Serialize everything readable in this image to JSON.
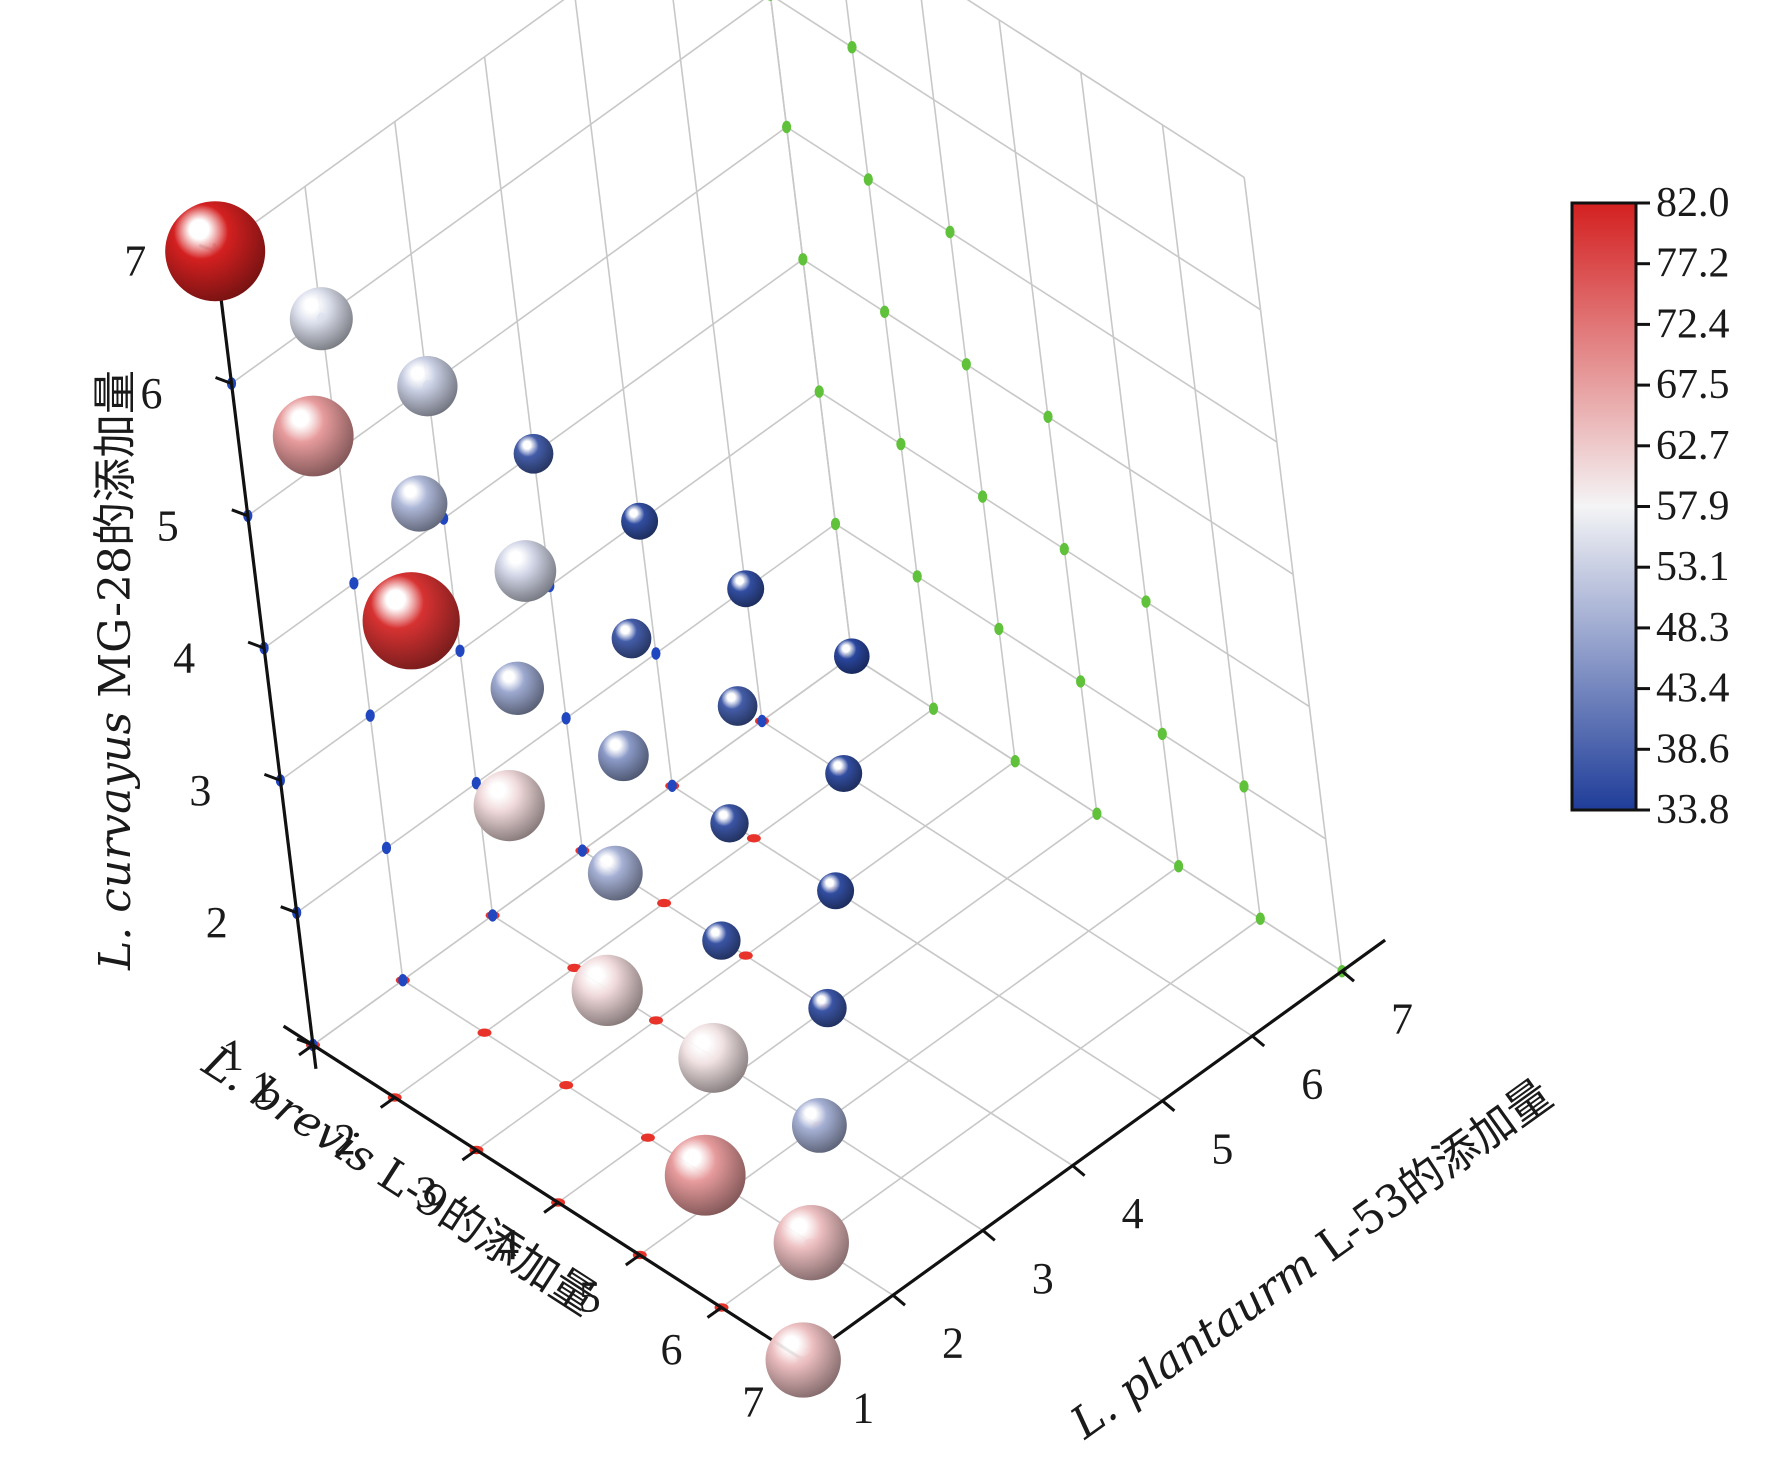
{
  "chart_data": {
    "type": "scatter",
    "chart_kind": "3d-bubble",
    "grid": true,
    "axes": {
      "x": {
        "label_species": "L. brevis",
        "label_rest": " L-9的添加量",
        "ticks": [
          "1",
          "2",
          "3",
          "4",
          "5",
          "6",
          "7"
        ],
        "range": [
          1,
          7
        ]
      },
      "y": {
        "label_species": "L. plantaurm",
        "label_rest": " L-53的添加量",
        "ticks": [
          "1",
          "2",
          "3",
          "4",
          "5",
          "6",
          "7"
        ],
        "range": [
          1,
          7
        ]
      },
      "z": {
        "label_species": "L. curvayus",
        "label_rest": " MG-28的添加量",
        "ticks": [
          "1",
          "2",
          "3",
          "4",
          "5",
          "6",
          "7"
        ],
        "range": [
          1,
          7
        ]
      }
    },
    "colorbar": {
      "position": "right",
      "min": 33.8,
      "max": 82.0,
      "ticks": [
        "82.0",
        "77.2",
        "72.4",
        "67.5",
        "62.7",
        "57.9",
        "53.1",
        "48.3",
        "43.4",
        "38.6",
        "33.8"
      ],
      "colors": {
        "low": "#1f3d99",
        "mid": "#f4f4f6",
        "high": "#d42020"
      }
    },
    "points": [
      {
        "x": 1,
        "y": 1,
        "z": 7,
        "value": 82.0
      },
      {
        "x": 1,
        "y": 2,
        "z": 6,
        "value": 55.0
      },
      {
        "x": 2,
        "y": 1,
        "z": 6,
        "value": 68.0
      },
      {
        "x": 1,
        "y": 3,
        "z": 5,
        "value": 53.0
      },
      {
        "x": 2,
        "y": 2,
        "z": 5,
        "value": 50.0
      },
      {
        "x": 3,
        "y": 1,
        "z": 5,
        "value": 80.0
      },
      {
        "x": 1,
        "y": 4,
        "z": 4,
        "value": 38.0
      },
      {
        "x": 2,
        "y": 3,
        "z": 4,
        "value": 54.0
      },
      {
        "x": 3,
        "y": 2,
        "z": 4,
        "value": 48.0
      },
      {
        "x": 4,
        "y": 1,
        "z": 4,
        "value": 61.0
      },
      {
        "x": 1,
        "y": 5,
        "z": 3,
        "value": 36.0
      },
      {
        "x": 2,
        "y": 4,
        "z": 3,
        "value": 38.0
      },
      {
        "x": 3,
        "y": 3,
        "z": 3,
        "value": 46.0
      },
      {
        "x": 4,
        "y": 2,
        "z": 3,
        "value": 49.0
      },
      {
        "x": 5,
        "y": 1,
        "z": 3,
        "value": 61.0
      },
      {
        "x": 1,
        "y": 6,
        "z": 2,
        "value": 36.0
      },
      {
        "x": 2,
        "y": 5,
        "z": 2,
        "value": 38.0
      },
      {
        "x": 3,
        "y": 4,
        "z": 2,
        "value": 37.0
      },
      {
        "x": 4,
        "y": 3,
        "z": 2,
        "value": 37.0
      },
      {
        "x": 5,
        "y": 2,
        "z": 2,
        "value": 60.0
      },
      {
        "x": 6,
        "y": 1,
        "z": 2,
        "value": 68.0
      },
      {
        "x": 1,
        "y": 7,
        "z": 1,
        "value": 35.0
      },
      {
        "x": 2,
        "y": 6,
        "z": 1,
        "value": 36.0
      },
      {
        "x": 3,
        "y": 5,
        "z": 1,
        "value": 36.0
      },
      {
        "x": 4,
        "y": 4,
        "z": 1,
        "value": 37.0
      },
      {
        "x": 5,
        "y": 3,
        "z": 1,
        "value": 49.0
      },
      {
        "x": 6,
        "y": 2,
        "z": 1,
        "value": 64.0
      },
      {
        "x": 7,
        "y": 1,
        "z": 1,
        "value": 64.0
      }
    ]
  }
}
